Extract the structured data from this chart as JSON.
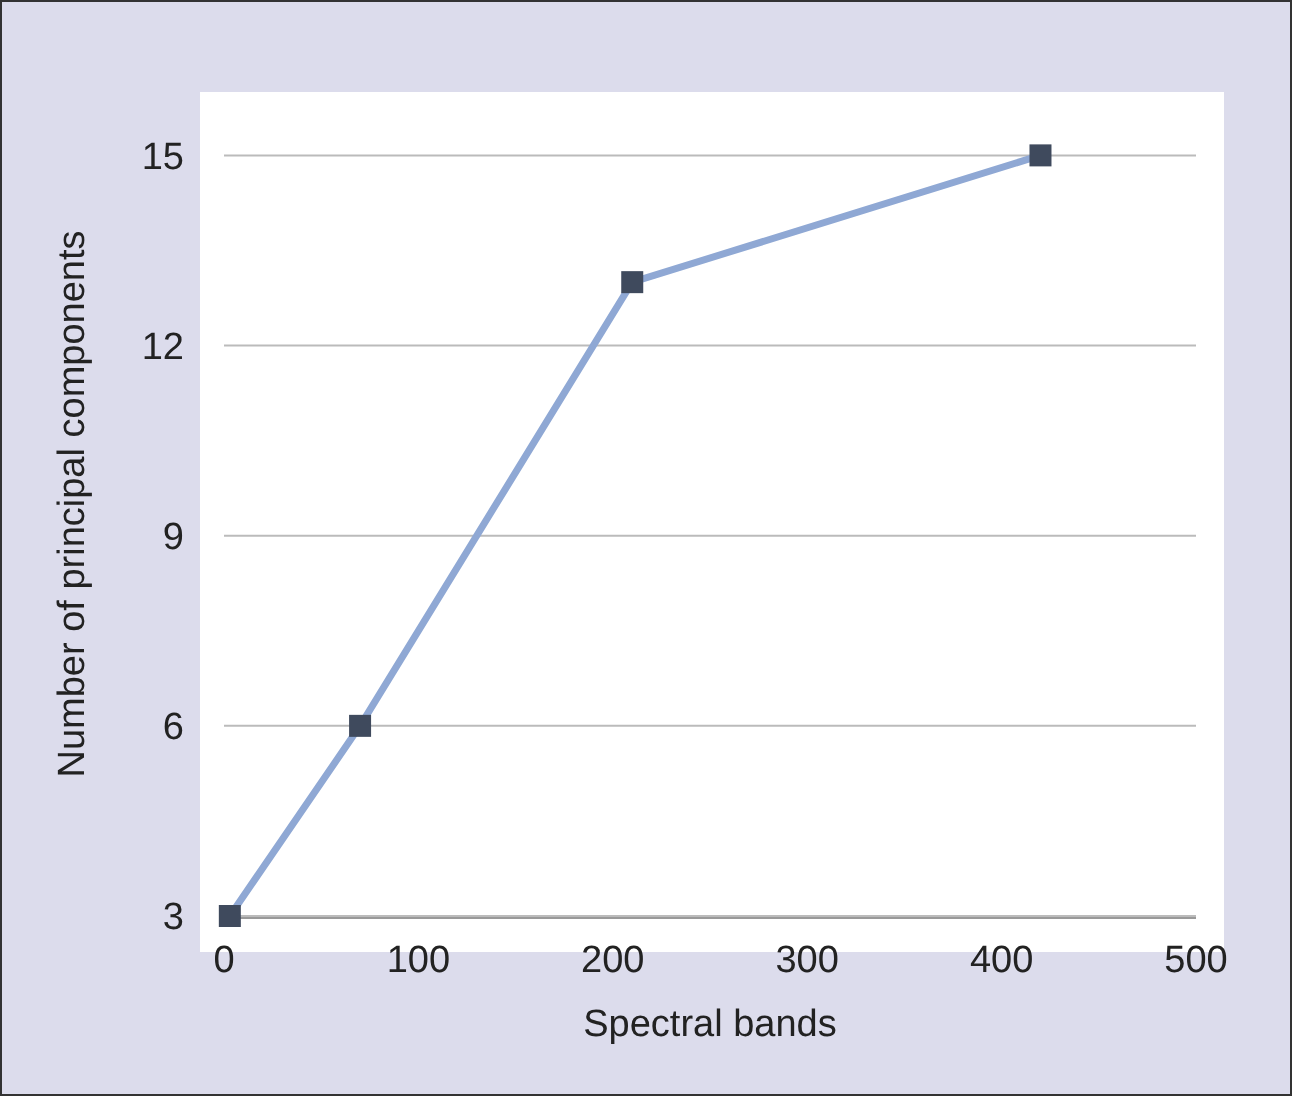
{
  "chart_data": {
    "type": "line",
    "xlabel": "Spectral bands",
    "ylabel": "Number of principal components",
    "x": [
      3,
      70,
      210,
      420
    ],
    "series": [
      {
        "color": "#8fa8d4",
        "values": [
          3,
          6,
          13,
          15
        ]
      }
    ],
    "marker": "square",
    "xlim": [
      0,
      500
    ],
    "xticks": [
      0,
      100,
      200,
      300,
      400,
      500
    ],
    "ylim": [
      3,
      16
    ],
    "yticks": [
      3,
      6,
      9,
      12,
      15
    ],
    "grid": "y"
  }
}
